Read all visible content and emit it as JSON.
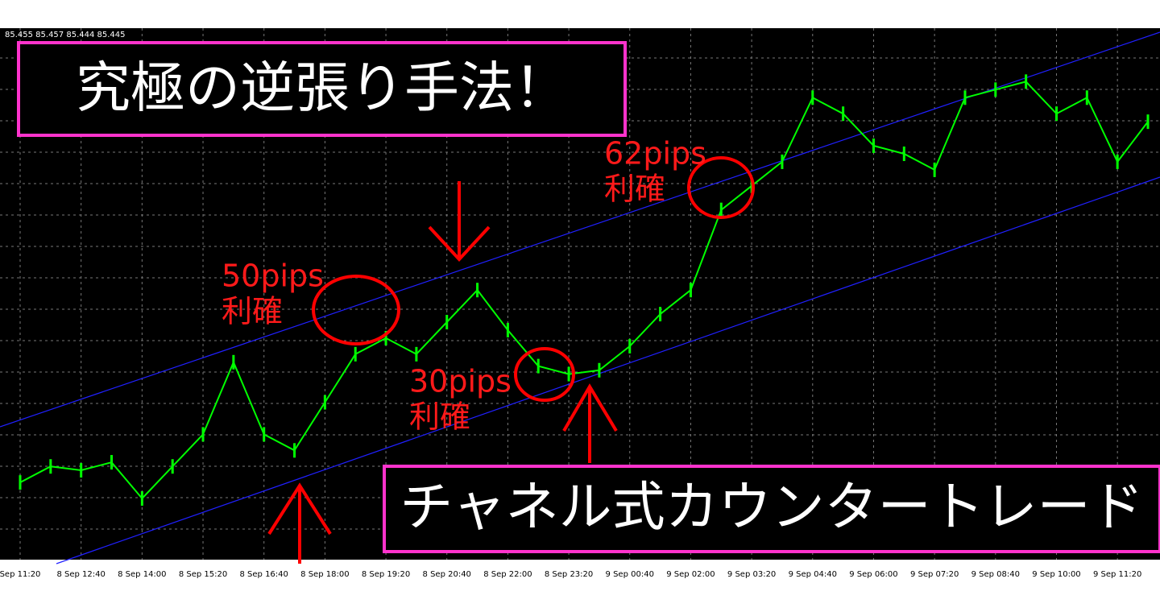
{
  "header_ohlc": "85.455 85.457 85.444 85.445",
  "chart_data": {
    "type": "line",
    "title": "究極の逆張り手法！",
    "subtitle": "チャネル式カウンタートレード",
    "categories": [
      "Sep 11:20",
      null,
      "8 Sep 12:40",
      null,
      "8 Sep 14:00",
      null,
      "8 Sep 15:20",
      null,
      "8 Sep 16:40",
      null,
      "8 Sep 18:00",
      null,
      "8 Sep 19:20",
      null,
      "8 Sep 20:40",
      null,
      "8 Sep 22:00",
      null,
      "8 Sep 23:20",
      null,
      "9 Sep 00:40",
      null,
      "9 Sep 02:00",
      null,
      "9 Sep 03:20",
      null,
      "9 Sep 04:40",
      null,
      "9 Sep 06:00",
      null,
      "9 Sep 07:20",
      null,
      "9 Sep 08:40",
      null,
      "9 Sep 10:00",
      null,
      "9 Sep 11:20",
      null
    ],
    "series": [
      {
        "color": "#00ff00",
        "values": [
          84.23,
          84.284,
          84.271,
          84.298,
          84.176,
          84.284,
          84.392,
          84.635,
          84.392,
          84.338,
          84.5,
          84.662,
          84.716,
          84.662,
          84.77,
          84.878,
          84.743,
          84.622,
          84.595,
          84.608,
          84.689,
          84.797,
          84.878,
          85.148,
          85.229,
          85.31,
          85.526,
          85.472,
          85.364,
          85.337,
          85.283,
          85.526,
          85.553,
          85.58,
          85.472,
          85.526,
          85.31,
          85.445
        ]
      }
    ],
    "ylim": [
      83.97,
      85.76
    ],
    "grid": true,
    "annotations": [
      {
        "lines": [
          "50pips",
          "利確"
        ]
      },
      {
        "lines": [
          "30pips",
          "利確"
        ]
      },
      {
        "lines": [
          "62pips",
          "利確"
        ]
      }
    ]
  }
}
